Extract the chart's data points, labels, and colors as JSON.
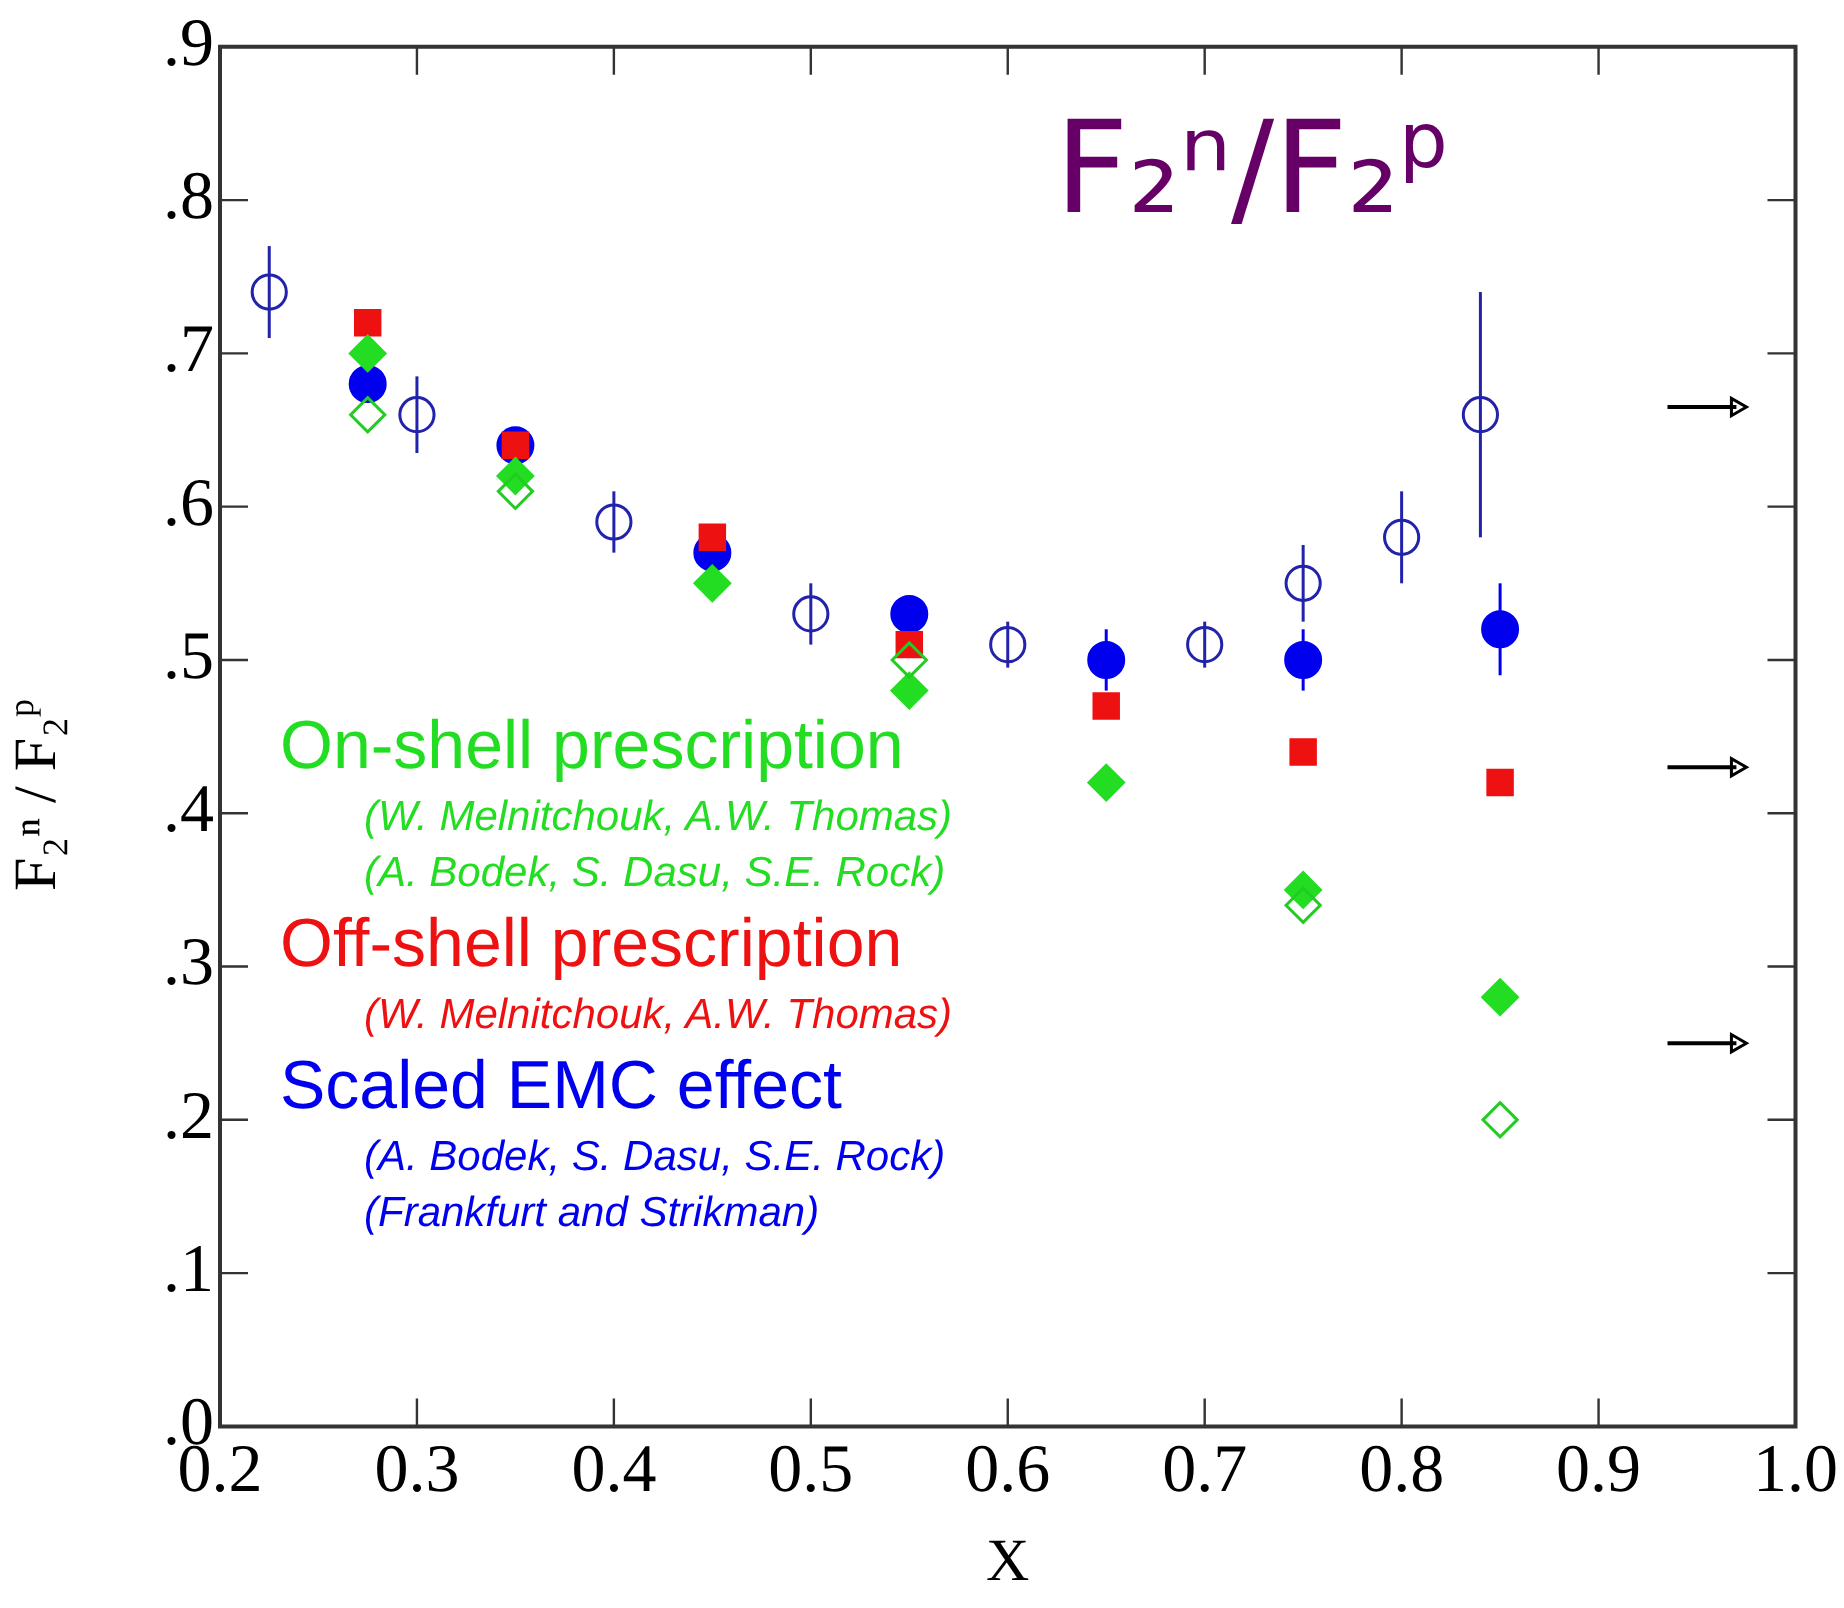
{
  "chart_data": {
    "type": "scatter",
    "title": "F₂ⁿ/F₂$^{p}$",
    "xlabel": "X",
    "ylabel": "F₂ⁿ / F₂$^{p}$",
    "xlim": [
      0.2,
      1.0
    ],
    "xticks": [
      0.2,
      0.3,
      0.4,
      0.5,
      0.6,
      0.7,
      0.8,
      0.9,
      {
        "value": 1.0,
        "label": "1.0"
      }
    ],
    "ylim": [
      0,
      0.9
    ],
    "yticks": [
      {
        "value": 0,
        "label": ".0"
      },
      {
        "value": 0.1,
        "label": ".1"
      },
      {
        "value": 0.2,
        "label": ".2"
      },
      {
        "value": 0.3,
        "label": ".3"
      },
      {
        "value": 0.4,
        "label": ".4"
      },
      {
        "value": 0.5,
        "label": ".5"
      },
      {
        "value": 0.6,
        "label": ".6"
      },
      {
        "value": 0.7,
        "label": ".7"
      },
      {
        "value": 0.8,
        "label": ".8"
      },
      {
        "value": 0.9,
        "label": ".9"
      }
    ],
    "grid": false,
    "legend": "bottom left",
    "series": [
      {
        "color": "#2222aa",
        "marker": "circle",
        "x": [
          0.225,
          0.3,
          0.4,
          0.5,
          0.6,
          0.7,
          0.75,
          0.8,
          0.84
        ],
        "values": [
          0.74,
          0.66,
          0.59,
          0.53,
          0.51,
          0.51,
          0.55,
          0.58,
          0.66
        ],
        "errors": [
          0.03,
          0.025,
          0.02,
          0.02,
          0.015,
          0.015,
          0.025,
          0.03,
          0.08
        ]
      },
      {
        "color": "#22cc22",
        "marker": "diamond",
        "x": [
          0.275,
          0.35,
          0.55,
          0.75,
          0.85
        ],
        "values": [
          0.66,
          0.61,
          0.5,
          0.34,
          0.2
        ]
      },
      {
        "name": "On-shell prescription\n(W. Melnitchouk, A.W. Thomas)\n(A. Bodek, S. Dasu, S.E. Rock)",
        "color": "#22dd22",
        "marker": "diamond",
        "x": [
          0.275,
          0.35,
          0.45,
          0.55,
          0.65,
          0.75,
          0.85
        ],
        "values": [
          0.7,
          0.62,
          0.55,
          0.48,
          0.42,
          0.35,
          0.28
        ]
      },
      {
        "name": "Off-shell prescription\n(W. Melnitchouk, A.W. Thomas)",
        "color": "#ee1111",
        "marker": "square",
        "x": [
          0.275,
          0.35,
          0.45,
          0.55,
          0.65,
          0.75,
          0.85
        ],
        "values": [
          0.72,
          0.64,
          0.58,
          0.51,
          0.47,
          0.44,
          0.42
        ]
      },
      {
        "name": "Scaled EMC effect\n(A. Bodek, S. Dasu, S.E. Rock)\n(Frankfurt and Strikman)",
        "color": "#0000ee",
        "marker": "circle",
        "x": [
          0.275,
          0.35,
          0.45,
          0.55,
          0.65,
          0.75,
          0.85
        ],
        "values": [
          0.68,
          0.64,
          0.57,
          0.53,
          0.5,
          0.5,
          0.52
        ],
        "errors": [
          0.01,
          0.01,
          0.01,
          0.01,
          0.02,
          0.02,
          0.03
        ]
      },
      {
        "color": "#000000",
        "marker": "triangle",
        "x": [
          0.97,
          0.97,
          0.97
        ],
        "values": [
          0.665,
          0.43,
          0.25
        ],
        "xerrors": [
          [
            0.935,
            0.97
          ],
          [
            0.935,
            0.97
          ],
          [
            0.935,
            0.97
          ]
        ]
      }
    ]
  }
}
